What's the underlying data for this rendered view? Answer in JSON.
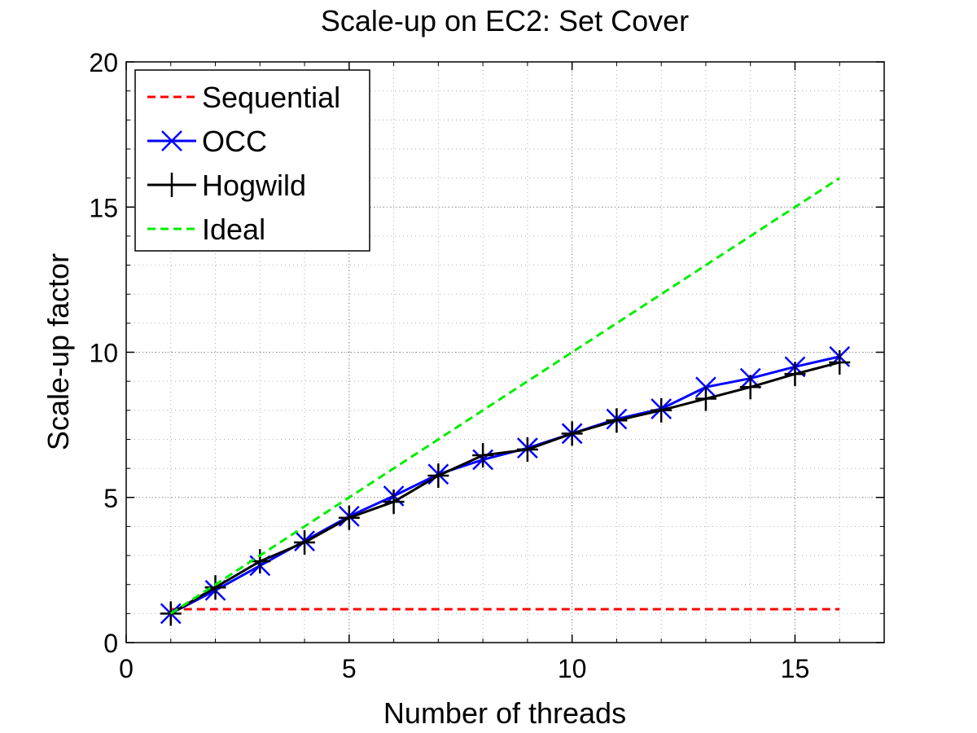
{
  "chart_data": {
    "type": "line",
    "title": "Scale-up on EC2: Set Cover",
    "xlabel": "Number of threads",
    "ylabel": "Scale-up factor",
    "xlim": [
      0,
      17
    ],
    "ylim": [
      0,
      20
    ],
    "xticks": [
      0,
      5,
      10,
      15
    ],
    "yticks": [
      0,
      5,
      10,
      15,
      20
    ],
    "grid": true,
    "legend_position": "top-left",
    "series": [
      {
        "name": "Sequential",
        "color": "#ff0000",
        "line_style": "dashed",
        "marker": "none",
        "x": [
          1,
          16
        ],
        "y": [
          1.15,
          1.15
        ]
      },
      {
        "name": "OCC",
        "color": "#0000ff",
        "line_style": "solid",
        "marker": "x",
        "x": [
          1,
          2,
          3,
          4,
          5,
          6,
          7,
          8,
          9,
          10,
          11,
          12,
          13,
          14,
          15,
          16
        ],
        "y": [
          1.0,
          1.8,
          2.65,
          3.5,
          4.35,
          5.05,
          5.8,
          6.3,
          6.7,
          7.2,
          7.7,
          8.05,
          8.8,
          9.1,
          9.5,
          9.85
        ]
      },
      {
        "name": "Hogwild",
        "color": "#000000",
        "line_style": "solid",
        "marker": "+",
        "x": [
          1,
          2,
          3,
          4,
          5,
          6,
          7,
          8,
          9,
          10,
          11,
          12,
          13,
          14,
          15,
          16
        ],
        "y": [
          1.0,
          1.9,
          2.8,
          3.45,
          4.3,
          4.85,
          5.75,
          6.45,
          6.65,
          7.2,
          7.65,
          8.0,
          8.4,
          8.8,
          9.25,
          9.65
        ]
      },
      {
        "name": "Ideal",
        "color": "#00ee00",
        "line_style": "dashed",
        "marker": "none",
        "x": [
          1,
          16
        ],
        "y": [
          1,
          16
        ]
      }
    ]
  }
}
